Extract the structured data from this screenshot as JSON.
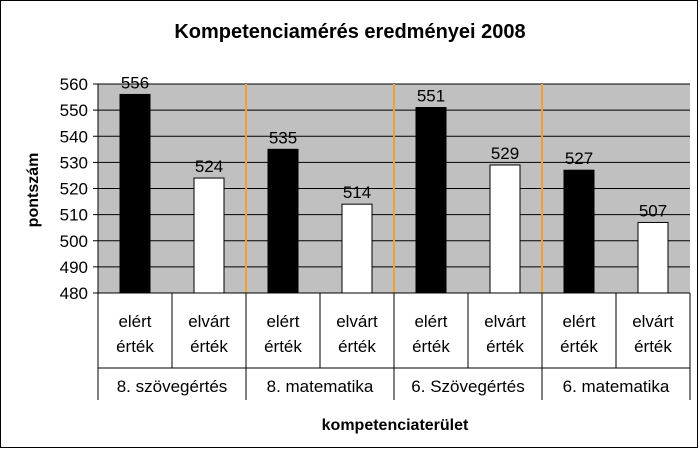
{
  "chart_data": {
    "type": "bar",
    "title": "Kompetenciamérés eredményei 2008",
    "xlabel": "kompetenciaterület",
    "ylabel": "pontszám",
    "ylim": [
      480,
      560
    ],
    "yticks": [
      480,
      490,
      500,
      510,
      520,
      530,
      540,
      550,
      560
    ],
    "grid": true,
    "legend": "none",
    "categories": [
      {
        "line1": "elért",
        "line2": "érték",
        "group": "8. szövegértés",
        "value": 556
      },
      {
        "line1": "elvárt",
        "line2": "érték",
        "group": "8. szövegértés",
        "value": 524
      },
      {
        "line1": "elért",
        "line2": "érték",
        "group": "8. matematika",
        "value": 535
      },
      {
        "line1": "elvárt",
        "line2": "érték",
        "group": "8. matematika",
        "value": 514
      },
      {
        "line1": "elért",
        "line2": "érték",
        "group": "6. Szövegértés",
        "value": 551
      },
      {
        "line1": "elvárt",
        "line2": "érték",
        "group": "6. Szövegértés",
        "value": 529
      },
      {
        "line1": "elért",
        "line2": "érték",
        "group": "6. matematika",
        "value": 527
      },
      {
        "line1": "elvárt",
        "line2": "érték",
        "group": "6. matematika",
        "value": 507
      }
    ],
    "groups": [
      "8. szövegértés",
      "8. matematika",
      "6. Szövegértés",
      "6. matematika"
    ],
    "colors": {
      "plot_background": "#c0c0c0",
      "achieved_bar": "#000000",
      "expected_bar": "#ffffff",
      "group_separator": "#f0a030",
      "gridline": "#000000"
    }
  }
}
